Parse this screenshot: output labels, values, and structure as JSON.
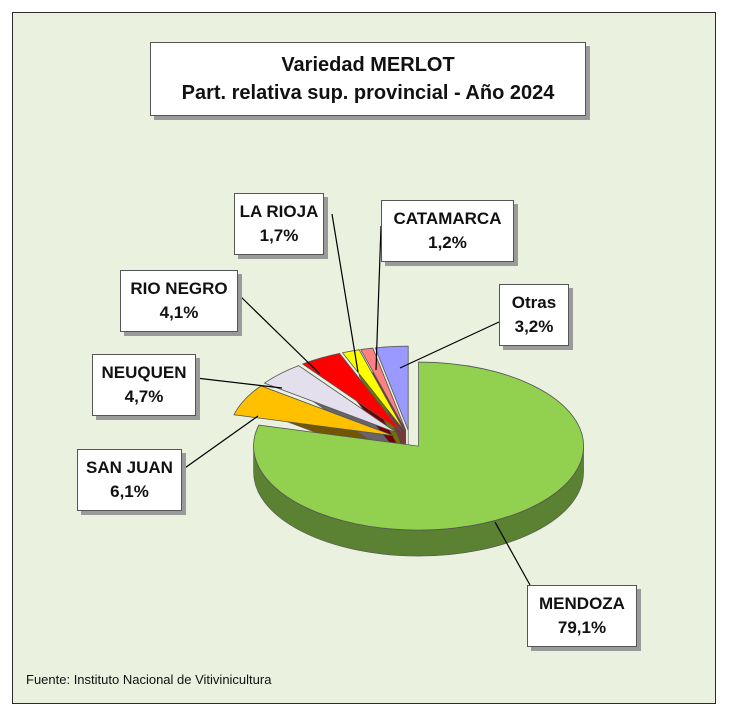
{
  "chart_data": {
    "type": "pie",
    "title": "Variedad MERLOT",
    "subtitle": "Part. relativa sup. provincial - Año 2024",
    "slices": [
      {
        "name": "MENDOZA",
        "value": 79.1,
        "label": "79,1%",
        "color": "#92d050"
      },
      {
        "name": "SAN JUAN",
        "value": 6.1,
        "label": "6,1%",
        "color": "#ffc000"
      },
      {
        "name": "NEUQUEN",
        "value": 4.7,
        "label": "4,7%",
        "color": "#e4dfec"
      },
      {
        "name": "RIO NEGRO",
        "value": 4.1,
        "label": "4,1%",
        "color": "#ff0000"
      },
      {
        "name": "LA RIOJA",
        "value": 1.7,
        "label": "1,7%",
        "color": "#ffff00"
      },
      {
        "name": "CATAMARCA",
        "value": 1.2,
        "label": "1,2%",
        "color": "#ff8080"
      },
      {
        "name": "Otras",
        "value": 3.2,
        "label": "3,2%",
        "color": "#9999ff"
      }
    ]
  },
  "source": "Fuente:  Instituto Nacional de Vitivinicultura"
}
